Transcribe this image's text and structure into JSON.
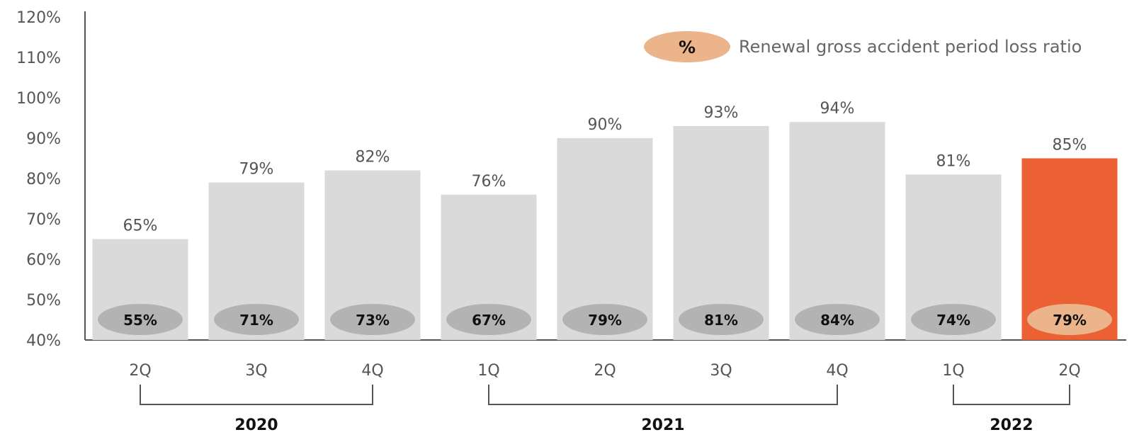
{
  "chart_data": {
    "type": "bar",
    "categories": [
      "2Q",
      "3Q",
      "4Q",
      "1Q",
      "2Q",
      "3Q",
      "4Q",
      "1Q",
      "2Q"
    ],
    "groups": [
      {
        "label": "2020",
        "from": 0,
        "to": 2
      },
      {
        "label": "2021",
        "from": 3,
        "to": 6
      },
      {
        "label": "2022",
        "from": 7,
        "to": 8
      }
    ],
    "values": [
      65,
      79,
      82,
      76,
      90,
      93,
      94,
      81,
      85
    ],
    "value_labels": [
      "65%",
      "79%",
      "82%",
      "76%",
      "90%",
      "93%",
      "94%",
      "81%",
      "85%"
    ],
    "renewal_values": [
      55,
      71,
      73,
      67,
      79,
      81,
      84,
      74,
      79
    ],
    "renewal_labels": [
      "55%",
      "71%",
      "73%",
      "67%",
      "79%",
      "81%",
      "84%",
      "74%",
      "79%"
    ],
    "highlight_index": 8,
    "ylim": [
      40,
      120
    ],
    "yticks": [
      40,
      50,
      60,
      70,
      80,
      90,
      100,
      110,
      120
    ],
    "ytick_labels": [
      "40%",
      "50%",
      "60%",
      "70%",
      "80%",
      "90%",
      "100%",
      "110%",
      "120%"
    ],
    "legend": {
      "symbol": "%",
      "label": "Renewal gross accident period loss ratio",
      "position": "top-right"
    },
    "grid": false,
    "colors": {
      "bar": "#dadada",
      "bar_highlight": "#eb6133",
      "oval": "#b3b3b3",
      "oval_highlight": "#ebb48a",
      "axis": "#555555"
    }
  }
}
